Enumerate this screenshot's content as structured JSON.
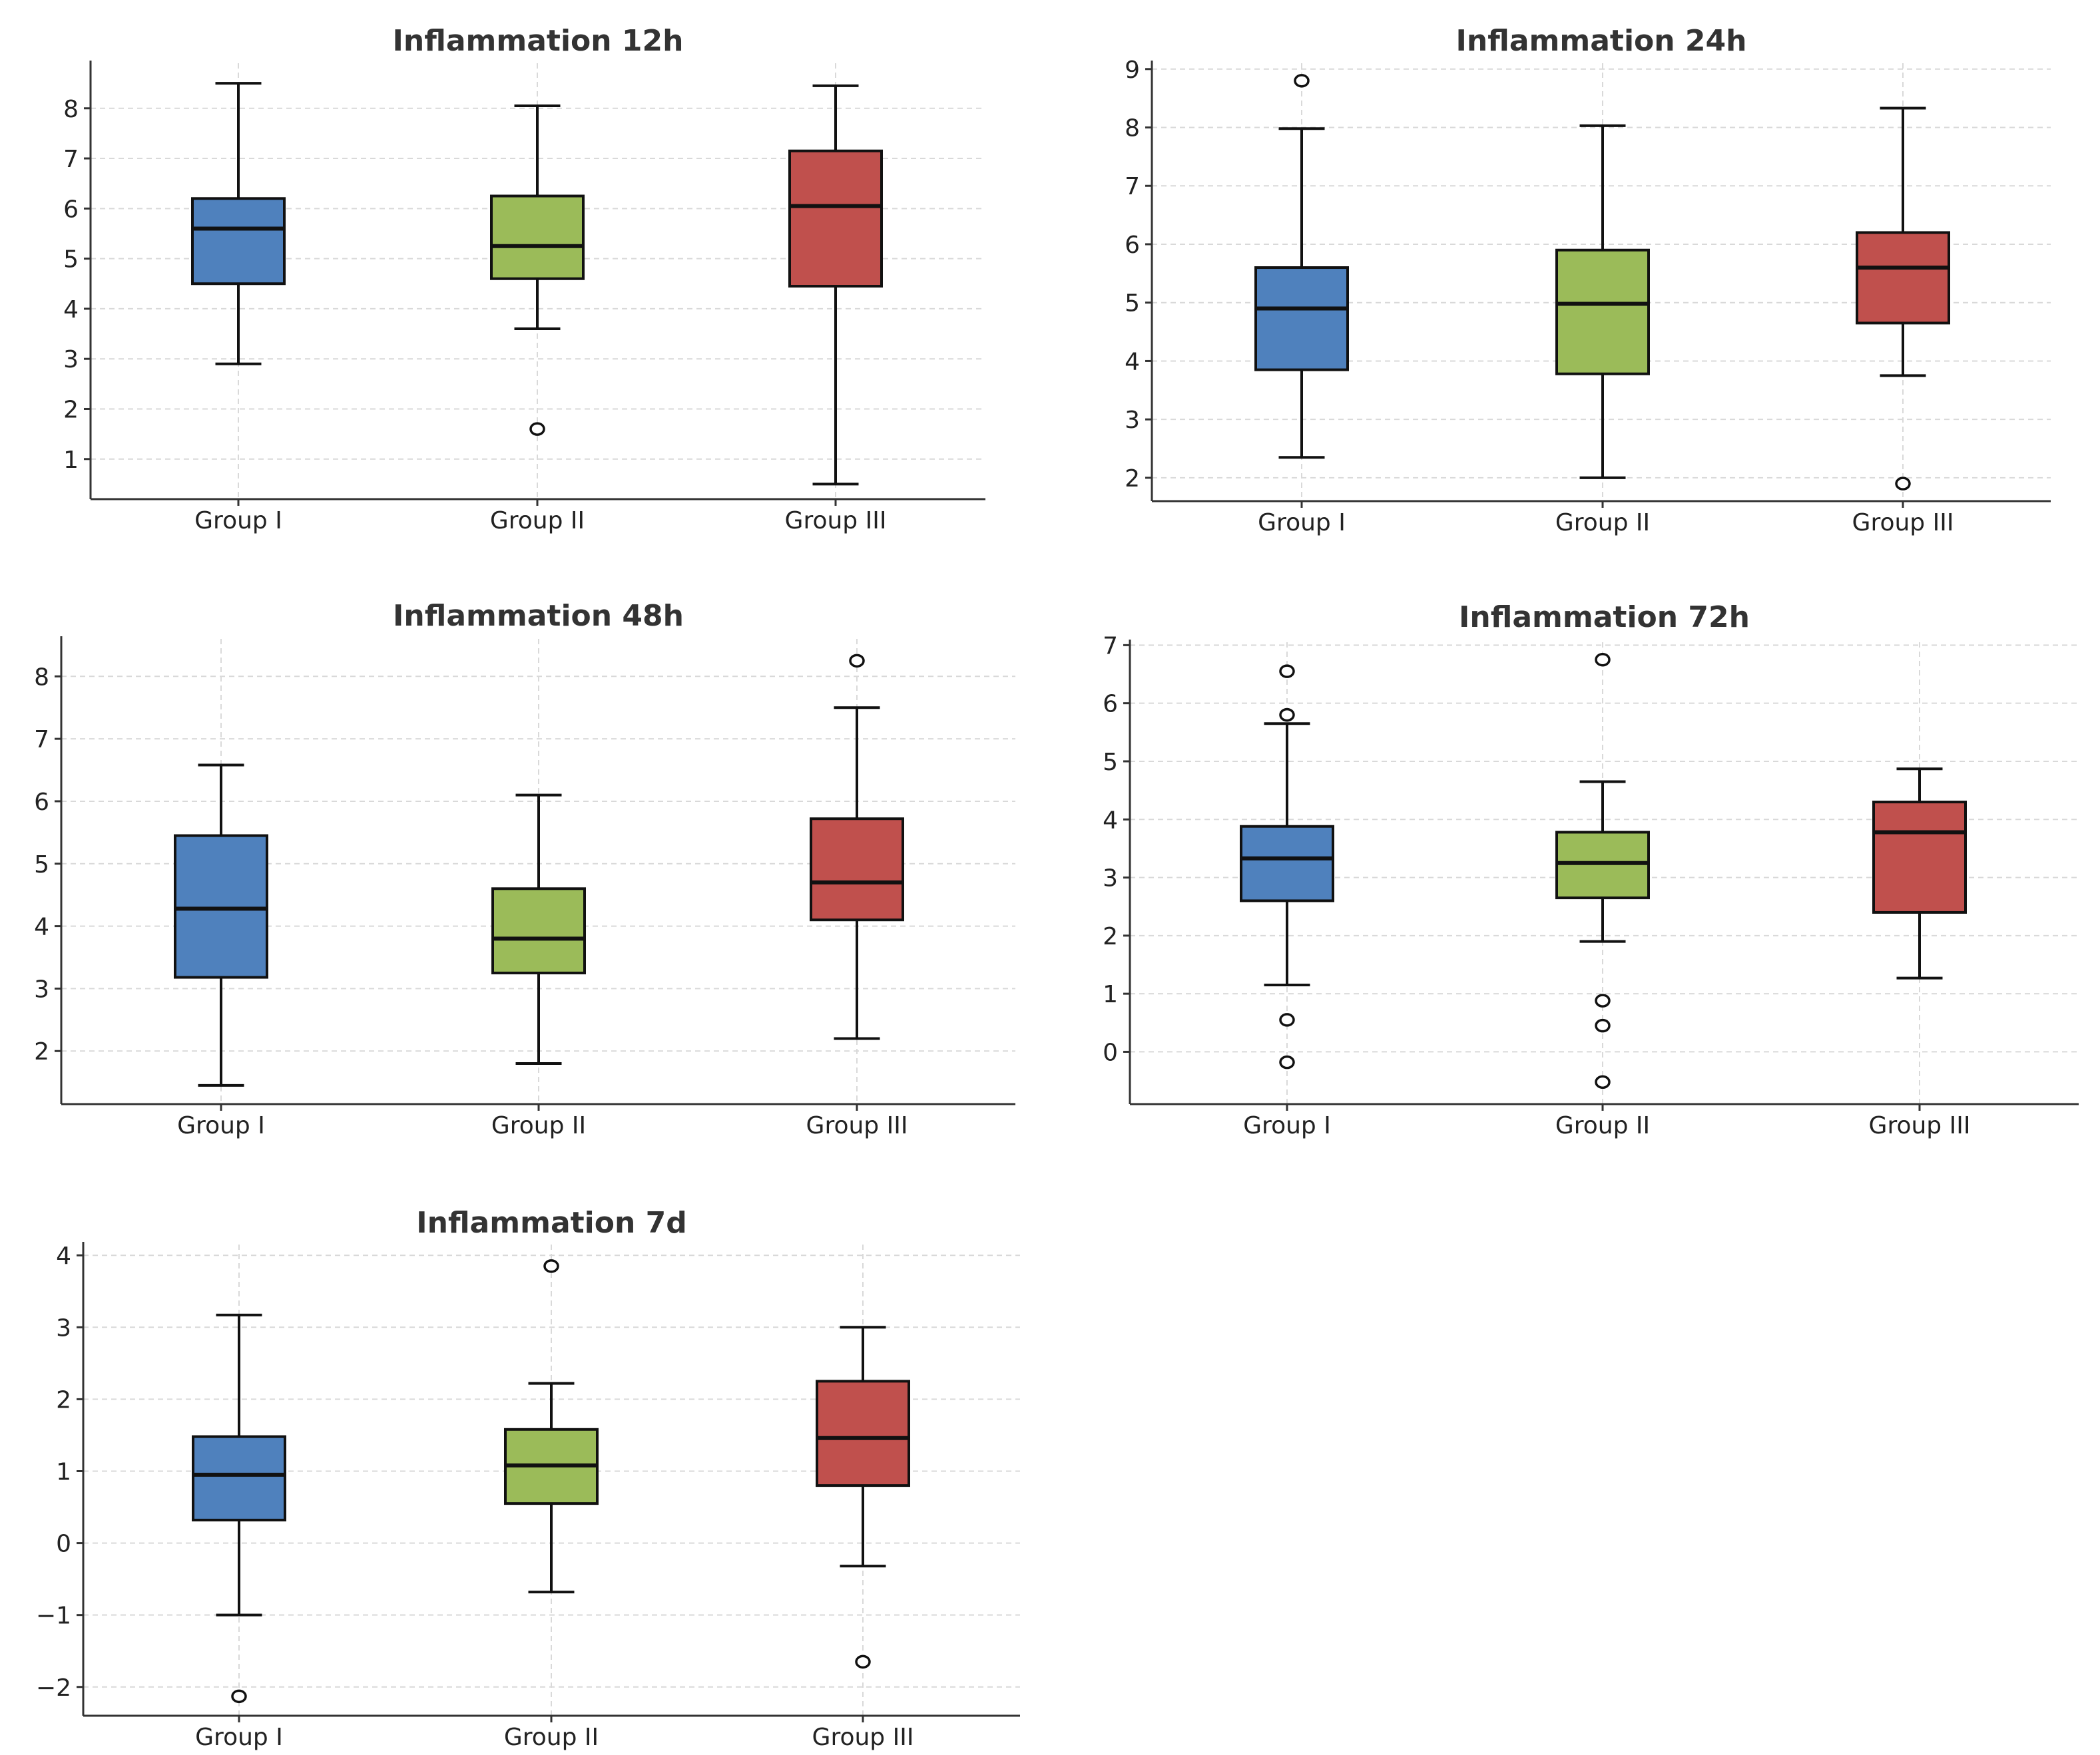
{
  "chart_data": [
    {
      "type": "box",
      "title": "Inflammation 12h",
      "categories": [
        "Group I",
        "Group II",
        "Group III"
      ],
      "yticks": [
        1,
        2,
        3,
        4,
        5,
        6,
        7,
        8
      ],
      "ylim": [
        0.2,
        8.9
      ],
      "colors": [
        "#4f81bd",
        "#9bbb59",
        "#c0504d"
      ],
      "series": [
        {
          "name": "Group I",
          "whisker_low": 2.9,
          "q1": 4.5,
          "median": 5.6,
          "q3": 6.2,
          "whisker_high": 8.5,
          "outliers": []
        },
        {
          "name": "Group II",
          "whisker_low": 3.6,
          "q1": 4.6,
          "median": 5.25,
          "q3": 6.25,
          "whisker_high": 8.05,
          "outliers": [
            1.6
          ]
        },
        {
          "name": "Group III",
          "whisker_low": 0.5,
          "q1": 4.45,
          "median": 6.05,
          "q3": 7.15,
          "whisker_high": 8.45,
          "outliers": []
        }
      ]
    },
    {
      "type": "box",
      "title": "Inflammation 24h",
      "categories": [
        "Group I",
        "Group II",
        "Group III"
      ],
      "yticks": [
        2,
        3,
        4,
        5,
        6,
        7,
        8,
        9
      ],
      "ylim": [
        1.6,
        9.1
      ],
      "colors": [
        "#4f81bd",
        "#9bbb59",
        "#c0504d"
      ],
      "series": [
        {
          "name": "Group I",
          "whisker_low": 2.35,
          "q1": 3.85,
          "median": 4.9,
          "q3": 5.6,
          "whisker_high": 7.98,
          "outliers": [
            8.8
          ]
        },
        {
          "name": "Group II",
          "whisker_low": 2.0,
          "q1": 3.78,
          "median": 4.98,
          "q3": 5.9,
          "whisker_high": 8.03,
          "outliers": []
        },
        {
          "name": "Group III",
          "whisker_low": 3.75,
          "q1": 4.65,
          "median": 5.6,
          "q3": 6.2,
          "whisker_high": 8.33,
          "outliers": [
            1.9
          ]
        }
      ]
    },
    {
      "type": "box",
      "title": "Inflammation 48h",
      "categories": [
        "Group I",
        "Group II",
        "Group III"
      ],
      "yticks": [
        2,
        3,
        4,
        5,
        6,
        7,
        8
      ],
      "ylim": [
        1.15,
        8.6
      ],
      "colors": [
        "#4f81bd",
        "#9bbb59",
        "#c0504d"
      ],
      "series": [
        {
          "name": "Group I",
          "whisker_low": 1.45,
          "q1": 3.18,
          "median": 4.28,
          "q3": 5.45,
          "whisker_high": 6.58,
          "outliers": []
        },
        {
          "name": "Group II",
          "whisker_low": 1.8,
          "q1": 3.25,
          "median": 3.8,
          "q3": 4.6,
          "whisker_high": 6.1,
          "outliers": []
        },
        {
          "name": "Group III",
          "whisker_low": 2.2,
          "q1": 4.1,
          "median": 4.7,
          "q3": 5.72,
          "whisker_high": 7.5,
          "outliers": [
            8.25
          ]
        }
      ]
    },
    {
      "type": "box",
      "title": "Inflammation 72h",
      "categories": [
        "Group I",
        "Group II",
        "Group III"
      ],
      "yticks": [
        0,
        1,
        2,
        3,
        4,
        5,
        6,
        7
      ],
      "ylim": [
        -0.9,
        7.05
      ],
      "colors": [
        "#4f81bd",
        "#9bbb59",
        "#c0504d"
      ],
      "series": [
        {
          "name": "Group I",
          "whisker_low": 1.15,
          "q1": 2.6,
          "median": 3.33,
          "q3": 3.88,
          "whisker_high": 5.65,
          "outliers": [
            6.55,
            5.8,
            0.55,
            -0.18
          ]
        },
        {
          "name": "Group II",
          "whisker_low": 1.9,
          "q1": 2.65,
          "median": 3.25,
          "q3": 3.78,
          "whisker_high": 4.65,
          "outliers": [
            6.75,
            0.88,
            0.45,
            -0.52
          ]
        },
        {
          "name": "Group III",
          "whisker_low": 1.27,
          "q1": 2.4,
          "median": 3.78,
          "q3": 4.3,
          "whisker_high": 4.87,
          "outliers": []
        }
      ]
    },
    {
      "type": "box",
      "title": "Inflammation 7d",
      "categories": [
        "Group I",
        "Group II",
        "Group III"
      ],
      "yticks": [
        -2,
        -1,
        0,
        1,
        2,
        3,
        4
      ],
      "ytick_labels": [
        "−2",
        "−1",
        "0",
        "1",
        "2",
        "3",
        "4"
      ],
      "ylim": [
        -2.4,
        4.15
      ],
      "colors": [
        "#4f81bd",
        "#9bbb59",
        "#c0504d"
      ],
      "series": [
        {
          "name": "Group I",
          "whisker_low": -1.0,
          "q1": 0.32,
          "median": 0.95,
          "q3": 1.48,
          "whisker_high": 3.17,
          "outliers": [
            -2.13
          ]
        },
        {
          "name": "Group II",
          "whisker_low": -0.68,
          "q1": 0.55,
          "median": 1.08,
          "q3": 1.58,
          "whisker_high": 2.22,
          "outliers": [
            3.85
          ]
        },
        {
          "name": "Group III",
          "whisker_low": -0.32,
          "q1": 0.8,
          "median": 1.46,
          "q3": 2.25,
          "whisker_high": 3.0,
          "outliers": [
            -1.65
          ]
        }
      ]
    }
  ]
}
